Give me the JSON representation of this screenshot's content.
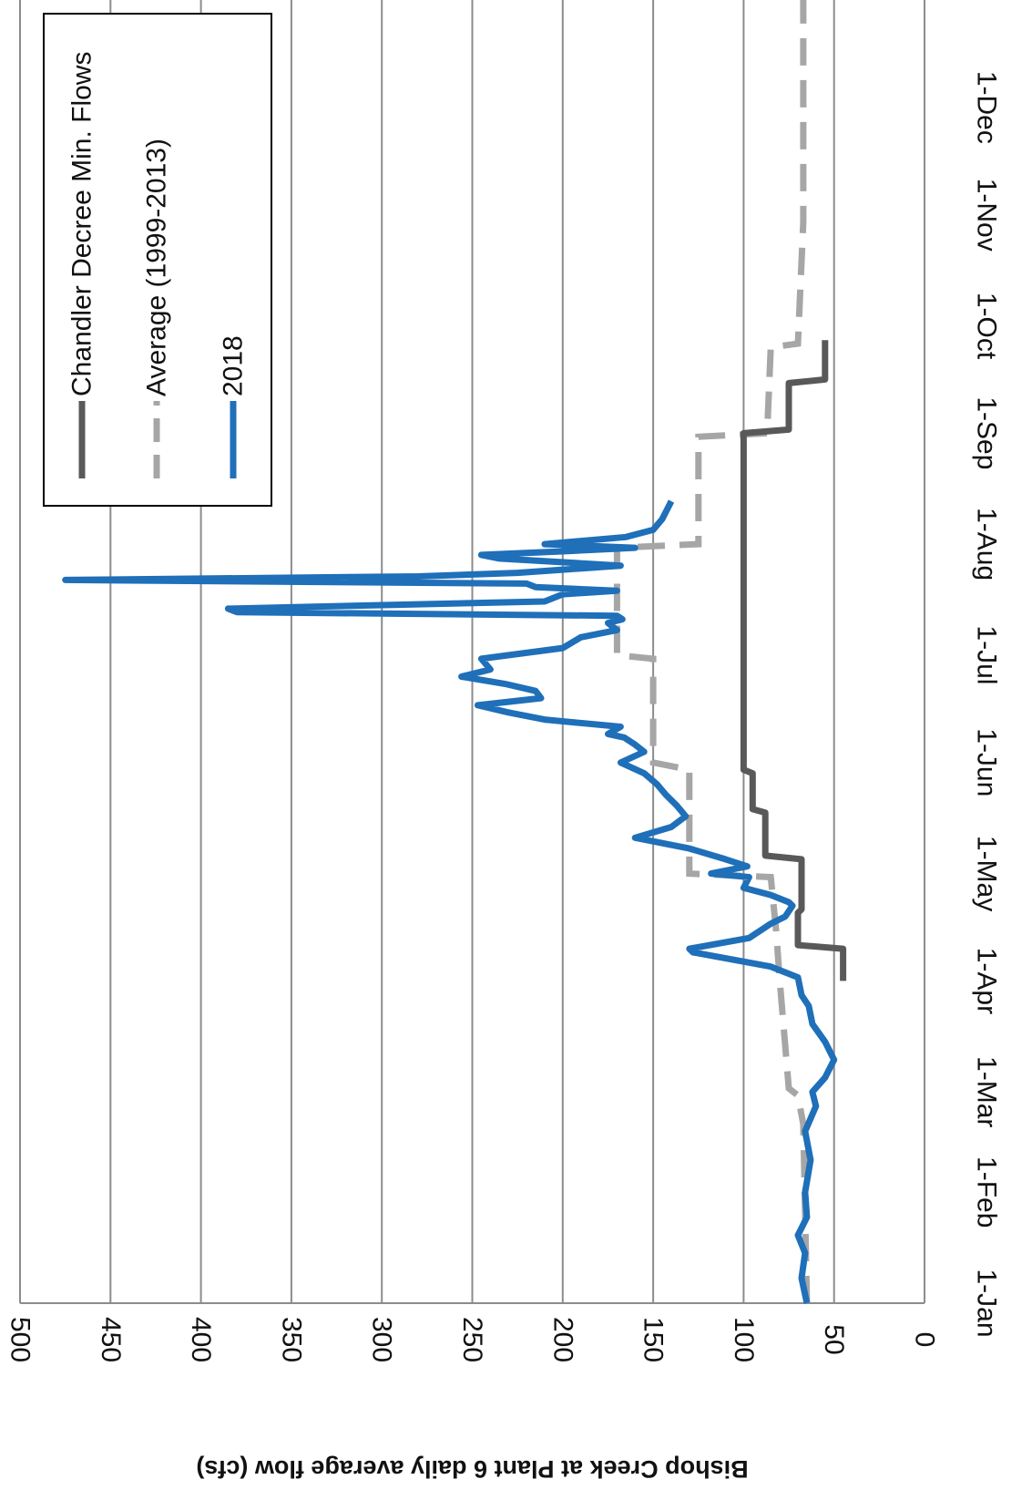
{
  "chart_data": {
    "type": "line",
    "orientation": "rotated 90° clockwise (page viewed in landscape)",
    "ylabel": "Bishop Creek at Plant 6 daily average flow (cfs)",
    "xlabel": "",
    "ylim": [
      0,
      500
    ],
    "yticks": [
      0,
      50,
      100,
      150,
      200,
      250,
      300,
      350,
      400,
      450,
      500
    ],
    "xlim": [
      "1-Jan",
      "31-Dec"
    ],
    "xticks": [
      "1-Jan",
      "1-Feb",
      "1-Mar",
      "1-Apr",
      "1-May",
      "1-Jun",
      "1-Jul",
      "1-Aug",
      "1-Sep",
      "1-Oct",
      "1-Nov",
      "1-Dec"
    ],
    "grid": true,
    "legend": {
      "placement": "top-right",
      "entries": [
        "Chandler Decree Min. Flows",
        "Average (1999-2013)",
        "2018"
      ]
    },
    "series": [
      {
        "name": "Chandler Decree Min. Flows",
        "color": "#595959",
        "style": "solid",
        "x": [
          "1-Apr",
          "10-Apr",
          "11-Apr",
          "20-Apr",
          "21-Apr",
          "5-May",
          "6-May",
          "18-May",
          "19-May",
          "29-May",
          "30-May",
          "1-Sep",
          "2-Sep",
          "15-Sep",
          "16-Sep",
          "27-Sep"
        ],
        "values": [
          45,
          45,
          70,
          70,
          68,
          68,
          88,
          88,
          95,
          95,
          100,
          100,
          75,
          75,
          55,
          55
        ]
      },
      {
        "name": "Average (1999-2013)",
        "color": "#a6a6a6",
        "style": "dashed",
        "x": [
          "1-Jan",
          "20-Feb",
          "28-Feb",
          "2-Mar",
          "1-Apr",
          "15-Apr",
          "30-Apr",
          "1-May",
          "30-May",
          "1-Jun",
          "30-Jun",
          "1-Jul",
          "31-Jul",
          "1-Aug",
          "31-Aug",
          "1-Sep",
          "25-Sep",
          "26-Sep",
          "30-Oct",
          "31-Dec"
        ],
        "values": [
          65,
          67,
          70,
          75,
          80,
          82,
          85,
          130,
          130,
          150,
          150,
          170,
          170,
          125,
          125,
          87,
          85,
          70,
          67,
          67
        ]
      },
      {
        "name": "2018",
        "color": "#1f6fb9",
        "style": "solid",
        "x": [
          "1-Jan",
          "8-Jan",
          "15-Jan",
          "20-Jan",
          "25-Jan",
          "1-Feb",
          "10-Feb",
          "18-Feb",
          "25-Feb",
          "1-Mar",
          "5-Mar",
          "10-Mar",
          "15-Mar",
          "20-Mar",
          "25-Mar",
          "28-Mar",
          "2-Apr",
          "5-Apr",
          "9-Apr",
          "10-Apr",
          "13-Apr",
          "17-Apr",
          "19-Apr",
          "22-Apr",
          "23-Apr",
          "25-Apr",
          "27-Apr",
          "30-Apr",
          "1-May",
          "3-May",
          "5-May",
          "8-May",
          "11-May",
          "14-May",
          "17-May",
          "20-May",
          "23-May",
          "26-May",
          "29-May",
          "1-Jun",
          "4-Jun",
          "6-Jun",
          "8-Jun",
          "9-Jun",
          "11-Jun",
          "13-Jun",
          "15-Jun",
          "17-Jun",
          "19-Jun",
          "21-Jun",
          "23-Jun",
          "25-Jun",
          "27-Jun",
          "30-Jun",
          "3-Jul",
          "6-Jul",
          "8-Jul",
          "10-Jul",
          "11-Jul",
          "12-Jul",
          "13-Jul",
          "14-Jul",
          "16-Jul",
          "18-Jul",
          "19-Jul",
          "20-Jul",
          "21-Jul",
          "22-Jul",
          "23-Jul",
          "24-Jul",
          "26-Jul",
          "28-Jul",
          "29-Jul",
          "30-Jul",
          "31-Jul",
          "1-Aug",
          "3-Aug",
          "5-Aug",
          "8-Aug",
          "11-Aug",
          "13-Aug"
        ],
        "values": [
          65,
          68,
          66,
          70,
          65,
          66,
          63,
          66,
          60,
          62,
          55,
          50,
          55,
          62,
          64,
          68,
          70,
          85,
          128,
          130,
          97,
          85,
          77,
          73,
          75,
          85,
          100,
          97,
          118,
          98,
          110,
          130,
          160,
          140,
          132,
          137,
          143,
          148,
          155,
          168,
          155,
          160,
          166,
          175,
          168,
          210,
          230,
          247,
          212,
          215,
          232,
          256,
          240,
          245,
          200,
          190,
          170,
          175,
          167,
          170,
          380,
          385,
          210,
          200,
          170,
          215,
          220,
          475,
          280,
          225,
          168,
          235,
          245,
          200,
          160,
          210,
          165,
          150,
          145,
          142,
          140
        ]
      }
    ]
  }
}
